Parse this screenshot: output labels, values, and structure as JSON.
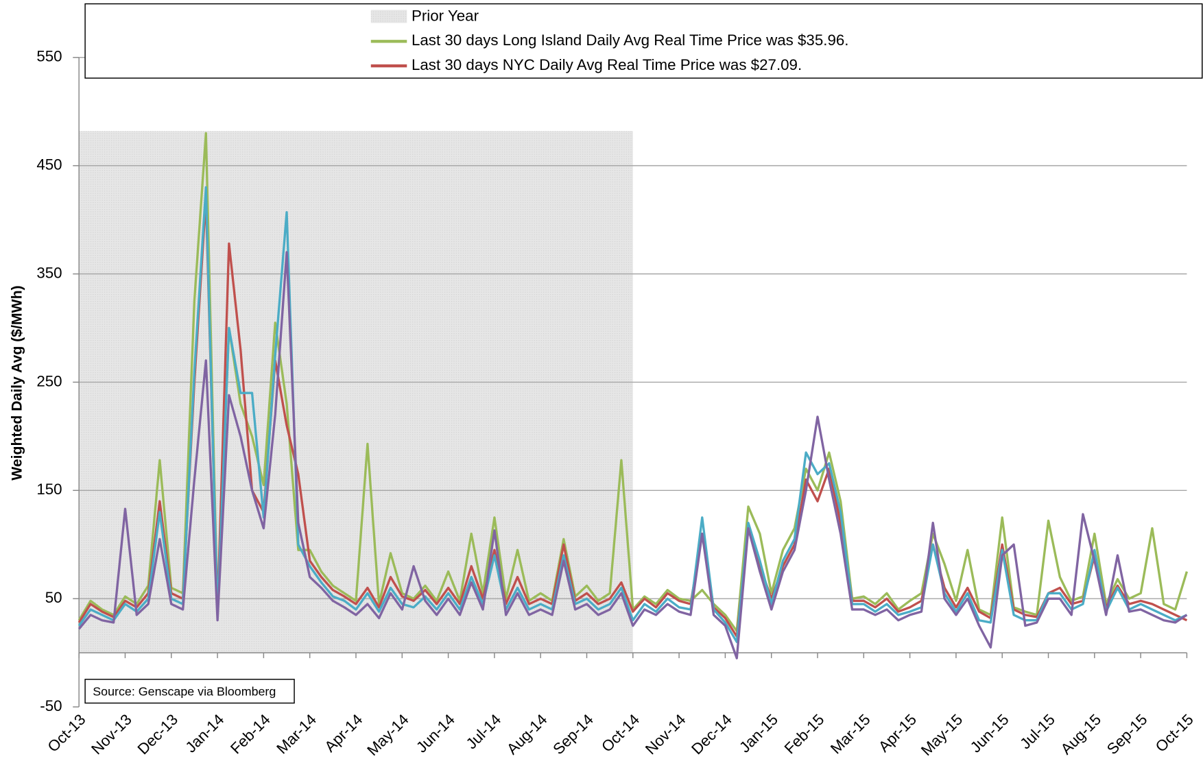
{
  "chart_data": {
    "type": "line",
    "y_label": "Weighted Daily Avg ($/MWh)",
    "annotation": "Source: Genscape via Bloomberg",
    "shaded_region": {
      "name": "Prior Year",
      "xlim": [
        0,
        12
      ],
      "ylim": [
        0,
        482
      ]
    },
    "xlim": [
      0,
      24
    ],
    "xticks": [
      {
        "value": 0,
        "label": "Oct-13"
      },
      {
        "value": 1,
        "label": "Nov-13"
      },
      {
        "value": 2,
        "label": "Dec-13"
      },
      {
        "value": 3,
        "label": "Jan-14"
      },
      {
        "value": 4,
        "label": "Feb-14"
      },
      {
        "value": 5,
        "label": "Mar-14"
      },
      {
        "value": 6,
        "label": "Apr-14"
      },
      {
        "value": 7,
        "label": "May-14"
      },
      {
        "value": 8,
        "label": "Jun-14"
      },
      {
        "value": 9,
        "label": "Jul-14"
      },
      {
        "value": 10,
        "label": "Aug-14"
      },
      {
        "value": 11,
        "label": "Sep-14"
      },
      {
        "value": 12,
        "label": "Oct-14"
      },
      {
        "value": 13,
        "label": "Nov-14"
      },
      {
        "value": 14,
        "label": "Dec-14"
      },
      {
        "value": 15,
        "label": "Jan-15"
      },
      {
        "value": 16,
        "label": "Feb-15"
      },
      {
        "value": 17,
        "label": "Mar-15"
      },
      {
        "value": 18,
        "label": "Apr-15"
      },
      {
        "value": 19,
        "label": "May-15"
      },
      {
        "value": 20,
        "label": "Jun-15"
      },
      {
        "value": 21,
        "label": "Jul-15"
      },
      {
        "value": 22,
        "label": "Aug-15"
      },
      {
        "value": 23,
        "label": "Sep-15"
      },
      {
        "value": 24,
        "label": "Oct-15"
      }
    ],
    "ylim": [
      -50,
      550
    ],
    "yticks": [
      -50,
      50,
      150,
      250,
      350,
      450,
      550
    ],
    "grid": true,
    "x": [
      0,
      0.25,
      0.5,
      0.75,
      1,
      1.25,
      1.5,
      1.75,
      2,
      2.25,
      2.5,
      2.75,
      3,
      3.25,
      3.5,
      3.75,
      4,
      4.25,
      4.5,
      4.75,
      5,
      5.25,
      5.5,
      5.75,
      6,
      6.25,
      6.5,
      6.75,
      7,
      7.25,
      7.5,
      7.75,
      8,
      8.25,
      8.5,
      8.75,
      9,
      9.25,
      9.5,
      9.75,
      10,
      10.25,
      10.5,
      10.75,
      11,
      11.25,
      11.5,
      11.75,
      12,
      12.25,
      12.5,
      12.75,
      13,
      13.25,
      13.5,
      13.75,
      14,
      14.25,
      14.5,
      14.75,
      15,
      15.25,
      15.5,
      15.75,
      16,
      16.25,
      16.5,
      16.75,
      17,
      17.25,
      17.5,
      17.75,
      18,
      18.25,
      18.5,
      18.75,
      19,
      19.25,
      19.5,
      19.75,
      20,
      20.25,
      20.5,
      20.75,
      21,
      21.25,
      21.5,
      21.75,
      22,
      22.25,
      22.5,
      22.75,
      23,
      23.25,
      23.5,
      23.75,
      24
    ],
    "series": [
      {
        "name": "Last 30 days Long Island Daily Avg Real Time Price was $35.96.",
        "color": "#9bbb59",
        "values": [
          30,
          48,
          40,
          35,
          52,
          45,
          62,
          178,
          60,
          55,
          325,
          480,
          40,
          300,
          230,
          200,
          155,
          305,
          230,
          95,
          95,
          75,
          62,
          55,
          48,
          193,
          45,
          92,
          55,
          50,
          62,
          48,
          75,
          48,
          110,
          55,
          125,
          50,
          95,
          48,
          55,
          48,
          105,
          52,
          62,
          48,
          55,
          178,
          40,
          52,
          45,
          58,
          50,
          48,
          58,
          45,
          35,
          20,
          135,
          110,
          55,
          95,
          115,
          170,
          150,
          185,
          140,
          50,
          52,
          45,
          55,
          40,
          48,
          55,
          110,
          82,
          48,
          95,
          40,
          35,
          125,
          42,
          38,
          35,
          122,
          70,
          48,
          52,
          110,
          45,
          68,
          50,
          55,
          115,
          45,
          40,
          75
        ]
      },
      {
        "name": "Last 30 days NYC Daily Avg Real Time Price was $27.09.",
        "color": "#c0504d",
        "values": [
          28,
          45,
          38,
          33,
          48,
          42,
          55,
          140,
          55,
          50,
          250,
          420,
          38,
          378,
          280,
          150,
          130,
          270,
          210,
          165,
          85,
          70,
          58,
          52,
          45,
          60,
          42,
          70,
          52,
          48,
          58,
          45,
          60,
          45,
          80,
          50,
          95,
          45,
          70,
          45,
          50,
          45,
          100,
          48,
          55,
          45,
          50,
          65,
          38,
          50,
          42,
          55,
          48,
          45,
          110,
          42,
          32,
          15,
          115,
          80,
          50,
          80,
          100,
          160,
          140,
          170,
          120,
          48,
          48,
          42,
          50,
          38,
          42,
          48,
          100,
          60,
          42,
          60,
          38,
          32,
          100,
          40,
          35,
          33,
          55,
          60,
          45,
          48,
          90,
          42,
          62,
          45,
          48,
          45,
          40,
          35,
          30
        ]
      },
      {
        "color": "#4bacc6",
        "values": [
          25,
          40,
          35,
          30,
          45,
          38,
          50,
          130,
          50,
          45,
          260,
          430,
          35,
          300,
          240,
          240,
          125,
          275,
          407,
          100,
          80,
          65,
          52,
          48,
          40,
          55,
          38,
          60,
          45,
          42,
          52,
          40,
          55,
          40,
          70,
          45,
          90,
          40,
          60,
          40,
          45,
          40,
          90,
          45,
          50,
          40,
          45,
          60,
          30,
          45,
          38,
          50,
          42,
          40,
          125,
          40,
          28,
          10,
          120,
          85,
          45,
          85,
          105,
          185,
          165,
          175,
          130,
          45,
          45,
          38,
          45,
          35,
          38,
          42,
          100,
          55,
          38,
          55,
          30,
          28,
          95,
          35,
          30,
          30,
          55,
          55,
          40,
          45,
          95,
          38,
          60,
          40,
          45,
          40,
          35,
          30,
          35
        ]
      },
      {
        "color": "#8064a2",
        "values": [
          22,
          35,
          30,
          28,
          133,
          35,
          45,
          105,
          45,
          40,
          160,
          270,
          30,
          238,
          200,
          150,
          115,
          220,
          370,
          120,
          70,
          60,
          48,
          42,
          35,
          45,
          32,
          55,
          40,
          80,
          48,
          35,
          50,
          35,
          65,
          40,
          113,
          35,
          55,
          35,
          40,
          35,
          85,
          40,
          45,
          35,
          40,
          55,
          25,
          40,
          35,
          45,
          38,
          35,
          110,
          35,
          25,
          -5,
          115,
          75,
          40,
          75,
          95,
          150,
          218,
          160,
          110,
          40,
          40,
          35,
          40,
          30,
          35,
          38,
          120,
          50,
          35,
          50,
          25,
          5,
          90,
          100,
          25,
          28,
          50,
          50,
          35,
          128,
          85,
          35,
          90,
          38,
          40,
          35,
          30,
          28,
          35
        ]
      }
    ]
  }
}
